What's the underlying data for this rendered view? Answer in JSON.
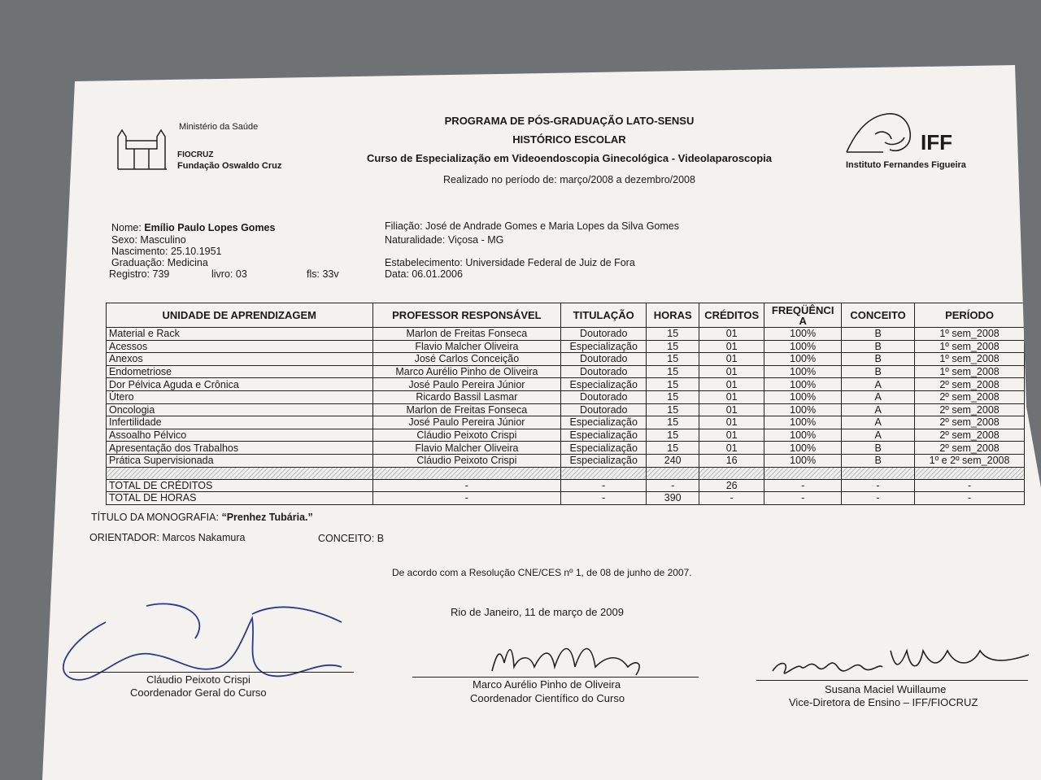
{
  "header": {
    "ministry": "Ministério da Saúde",
    "fiocruz": "FIOCRUZ",
    "fiocruz_full": "Fundação Oswaldo Cruz",
    "program": "PROGRAMA DE PÓS-GRADUAÇÃO LATO-SENSU",
    "doc_title": "HISTÓRICO ESCOLAR",
    "course": "Curso de Especialização em Videoendoscopia Ginecológica - Videolaparoscopia",
    "period": "Realizado no período de: março/2008 a dezembro/2008",
    "iff": "IFF",
    "iff_full": "Instituto Fernandes Figueira"
  },
  "student": {
    "nome_label": "Nome:",
    "nome": "Emílio Paulo Lopes Gomes",
    "sexo": "Sexo: Masculino",
    "nascimento": "Nascimento: 25.10.1951",
    "graduacao": "Graduação: Medicina",
    "registro": "Registro: 739",
    "livro": "livro: 03",
    "fls": "fls: 33v",
    "filiacao": "Filiação: José de Andrade Gomes e Maria Lopes da Silva Gomes",
    "naturalidade": "Naturalidade: Viçosa - MG",
    "estabelecimento": "Estabelecimento: Universidade Federal de Juiz de Fora",
    "data": "Data: 06.01.2006"
  },
  "table": {
    "headers": [
      "UNIDADE DE APRENDIZAGEM",
      "PROFESSOR RESPONSÁVEL",
      "TITULAÇÃO",
      "HORAS",
      "CRÉDITOS",
      "FREQÜÊNCI A",
      "CONCEITO",
      "PERÍODO"
    ],
    "rows": [
      [
        "Material e Rack",
        "Marlon de Freitas Fonseca",
        "Doutorado",
        "15",
        "01",
        "100%",
        "B",
        "1º sem_2008"
      ],
      [
        "Acessos",
        "Flavio Malcher Oliveira",
        "Especialização",
        "15",
        "01",
        "100%",
        "B",
        "1º sem_2008"
      ],
      [
        "Anexos",
        "José Carlos Conceição",
        "Doutorado",
        "15",
        "01",
        "100%",
        "B",
        "1º sem_2008"
      ],
      [
        "Endometriose",
        "Marco Aurélio Pinho de Oliveira",
        "Doutorado",
        "15",
        "01",
        "100%",
        "B",
        "1º sem_2008"
      ],
      [
        "Dor Pélvica Aguda e Crônica",
        "José Paulo Pereira Júnior",
        "Especialização",
        "15",
        "01",
        "100%",
        "A",
        "2º sem_2008"
      ],
      [
        "Útero",
        "Ricardo Bassil Lasmar",
        "Doutorado",
        "15",
        "01",
        "100%",
        "A",
        "2º sem_2008"
      ],
      [
        "Oncologia",
        "Marlon de Freitas Fonseca",
        "Doutorado",
        "15",
        "01",
        "100%",
        "A",
        "2º sem_2008"
      ],
      [
        "Infertilidade",
        "José Paulo Pereira Júnior",
        "Especialização",
        "15",
        "01",
        "100%",
        "A",
        "2º sem_2008"
      ],
      [
        "Assoalho Pélvico",
        "Cláudio Peixoto Crispi",
        "Especialização",
        "15",
        "01",
        "100%",
        "A",
        "2º sem_2008"
      ],
      [
        "Apresentação dos Trabalhos",
        "Flavio Malcher Oliveira",
        "Especialização",
        "15",
        "01",
        "100%",
        "B",
        "2º sem_2008"
      ],
      [
        "Prática Supervisionada",
        "Cláudio Peixoto Crispi",
        "Especialização",
        "240",
        "16",
        "100%",
        "B",
        "1º e 2º sem_2008"
      ]
    ],
    "totals": [
      [
        "TOTAL DE CRÉDITOS",
        "-",
        "-",
        "-",
        "26",
        "-",
        "-",
        "-"
      ],
      [
        "TOTAL DE HORAS",
        "-",
        "-",
        "390",
        "-",
        "-",
        "-",
        "-"
      ]
    ]
  },
  "monografia": {
    "label": "TÍTULO DA MONOGRAFIA:",
    "title": "“Prenhez Tubária.”",
    "orientador": "ORIENTADOR: Marcos Nakamura",
    "conceito": "CONCEITO: B"
  },
  "resolucao": "De acordo com a Resolução CNE/CES nº 1, de 08 de junho de 2007.",
  "local_data": "Rio de Janeiro, 11 de março de 2009",
  "signatures": [
    {
      "name": "Cláudio Peixoto Crispi",
      "role": "Coordenador Geral do Curso"
    },
    {
      "name": "Marco Aurélio Pinho de Oliveira",
      "role": "Coordenador Científico do Curso"
    },
    {
      "name": "Susana Maciel Wuillaume",
      "role": "Vice-Diretora de Ensino – IFF/FIOCRUZ"
    }
  ]
}
